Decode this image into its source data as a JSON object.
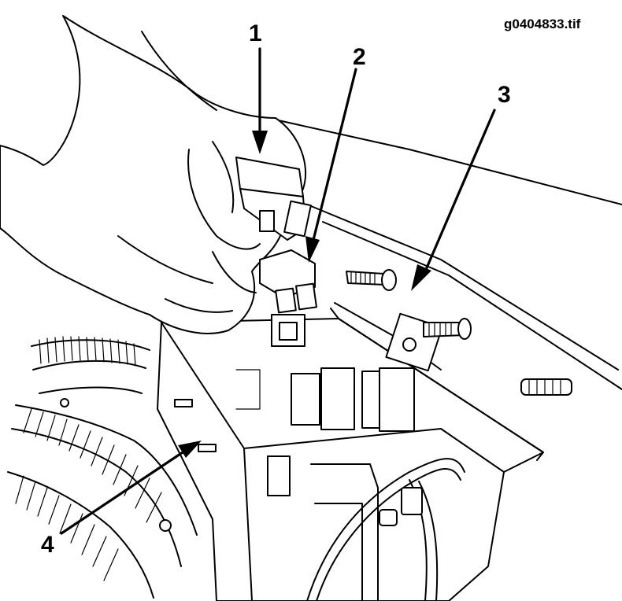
{
  "figure": {
    "file_id": "g0404833.tif",
    "callouts": [
      {
        "number": "1",
        "target": "fuse-held-in-hand"
      },
      {
        "number": "2",
        "target": "fuse-spare"
      },
      {
        "number": "3",
        "target": "fuse-block-bracket"
      },
      {
        "number": "4",
        "target": "fuse-box-housing"
      }
    ]
  },
  "style": {
    "line_color": "#000000",
    "background": "#ffffff"
  }
}
